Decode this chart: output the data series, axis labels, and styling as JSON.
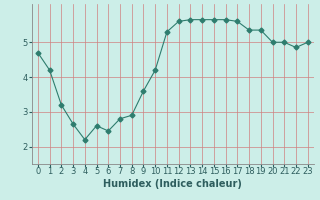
{
  "xlabel": "Humidex (Indice chaleur)",
  "ylabel": "",
  "x": [
    0,
    1,
    2,
    3,
    4,
    5,
    6,
    7,
    8,
    9,
    10,
    11,
    12,
    13,
    14,
    15,
    16,
    17,
    18,
    19,
    20,
    21,
    22,
    23
  ],
  "y": [
    4.7,
    4.2,
    3.2,
    2.65,
    2.2,
    2.6,
    2.45,
    2.8,
    2.9,
    3.6,
    4.2,
    5.3,
    5.6,
    5.65,
    5.65,
    5.65,
    5.65,
    5.6,
    5.35,
    5.35,
    5.0,
    5.0,
    4.85,
    5.0
  ],
  "line_color": "#2e7d6e",
  "marker": "D",
  "marker_size": 2.5,
  "bg_color": "#cceee8",
  "vgrid_color": "#d08080",
  "hgrid_color": "#d08080",
  "ylim": [
    1.5,
    6.1
  ],
  "xlim": [
    -0.5,
    23.5
  ],
  "yticks": [
    2,
    3,
    4,
    5
  ],
  "xticks": [
    0,
    1,
    2,
    3,
    4,
    5,
    6,
    7,
    8,
    9,
    10,
    11,
    12,
    13,
    14,
    15,
    16,
    17,
    18,
    19,
    20,
    21,
    22,
    23
  ],
  "tick_label_size": 6,
  "xlabel_size": 7,
  "xlabel_weight": "bold"
}
